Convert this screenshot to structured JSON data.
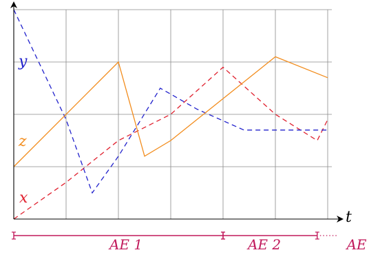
{
  "chart_data": {
    "type": "line",
    "title": "",
    "x_axis_label": "t",
    "xlim": [
      0,
      6
    ],
    "ylim": [
      0,
      4
    ],
    "grid": true,
    "series": [
      {
        "name": "x",
        "style": "dashed",
        "color": "#e0202e",
        "points": [
          [
            0,
            0
          ],
          [
            1,
            0.7
          ],
          [
            2,
            1.5
          ],
          [
            3,
            2.0
          ],
          [
            4,
            2.9
          ],
          [
            5,
            2.0
          ],
          [
            5.8,
            1.5
          ],
          [
            6,
            1.9
          ]
        ]
      },
      {
        "name": "y",
        "style": "dashed",
        "color": "#2222cc",
        "points": [
          [
            0,
            4
          ],
          [
            1,
            1.9
          ],
          [
            1.5,
            0.5
          ],
          [
            2,
            1.2
          ],
          [
            2.8,
            2.5
          ],
          [
            3.5,
            2.1
          ],
          [
            4.4,
            1.7
          ],
          [
            6,
            1.7
          ]
        ]
      },
      {
        "name": "z",
        "style": "solid",
        "color": "#f28c1c",
        "points": [
          [
            0,
            1
          ],
          [
            2,
            3
          ],
          [
            2.5,
            1.2
          ],
          [
            3,
            1.5
          ],
          [
            5,
            3.1
          ],
          [
            6,
            2.7
          ]
        ]
      }
    ],
    "segments": [
      {
        "label": "AE 1",
        "start": 0,
        "end": 4
      },
      {
        "label": "AE 2",
        "start": 4,
        "end": 5.8
      },
      {
        "label": "AE",
        "start": 5.8,
        "end": null,
        "continues": true
      }
    ]
  },
  "colors": {
    "x": "#e0202e",
    "y": "#2222cc",
    "z": "#f28c1c",
    "segment": "#c0185a",
    "grid": "#8a8a8a"
  }
}
